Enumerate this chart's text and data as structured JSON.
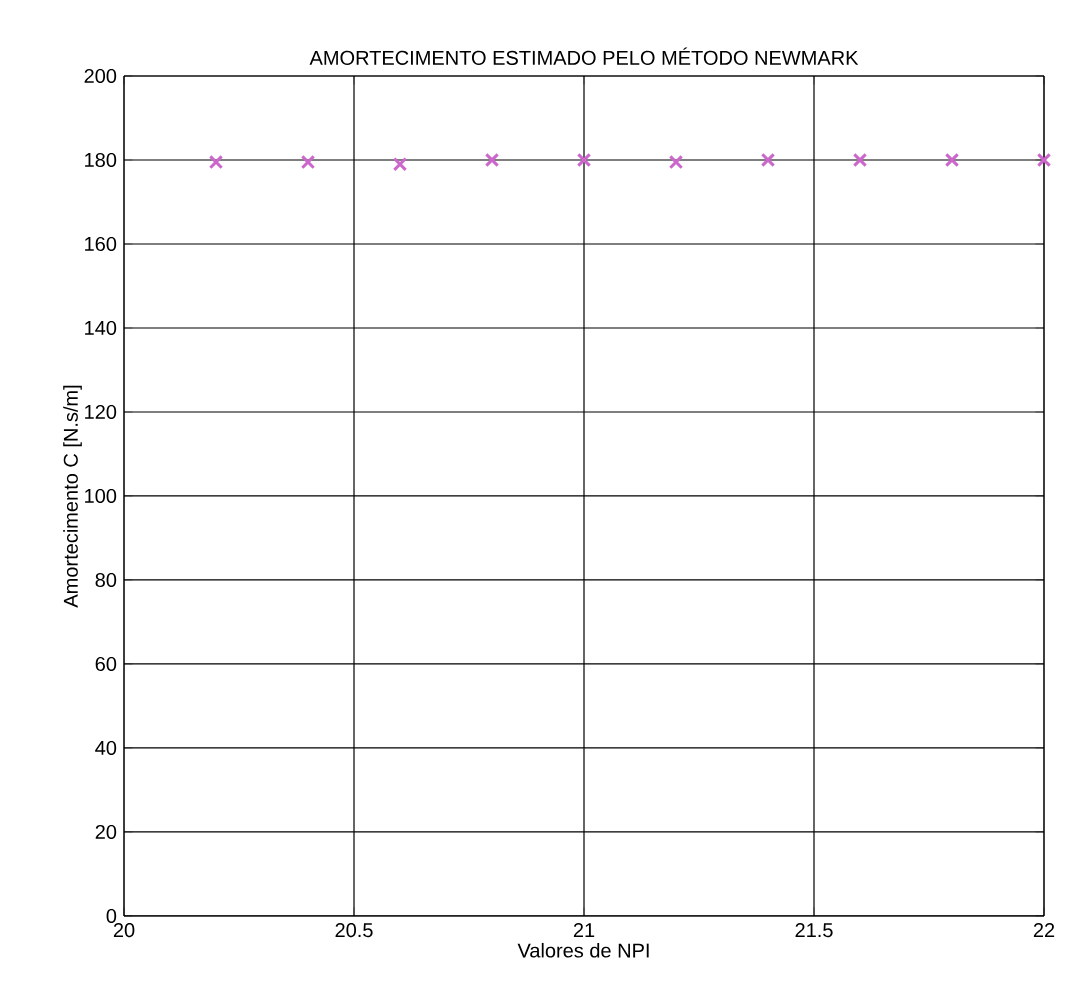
{
  "chart_data": {
    "type": "scatter",
    "title": "AMORTECIMENTO ESTIMADO PELO MÉTODO NEWMARK",
    "xlabel": "Valores de NPI",
    "ylabel": "Amortecimento C [N.s/m]",
    "x": [
      20.2,
      20.4,
      20.6,
      20.8,
      21.0,
      21.2,
      21.4,
      21.6,
      21.8,
      22.0
    ],
    "series": [
      {
        "color": "#cc66cc",
        "values": [
          179.5,
          179.5,
          179,
          180,
          180,
          179.5,
          180,
          180,
          180,
          180
        ]
      }
    ],
    "xlim": [
      20,
      22
    ],
    "ylim": [
      0,
      200
    ],
    "xticks": [
      20,
      20.5,
      21,
      21.5,
      22
    ],
    "yticks": [
      0,
      20,
      40,
      60,
      80,
      100,
      120,
      140,
      160,
      180,
      200
    ],
    "grid": true,
    "marker": "cross"
  }
}
